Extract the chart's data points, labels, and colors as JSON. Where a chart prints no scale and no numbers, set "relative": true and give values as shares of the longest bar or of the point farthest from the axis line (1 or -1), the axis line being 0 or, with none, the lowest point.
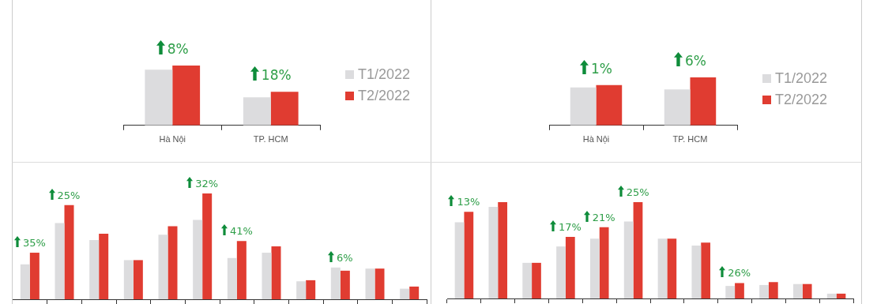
{
  "chart_data": [
    {
      "type": "bar",
      "relative": true,
      "legend": "right",
      "grid": false,
      "categories": [
        "Hà Nội",
        "TP. HCM"
      ],
      "series": [
        {
          "name": "T1/2022",
          "color": "#dcdcde",
          "values": [
            0.93,
            0.47
          ]
        },
        {
          "name": "T2/2022",
          "color": "#e03c31",
          "values": [
            1,
            0.56
          ]
        }
      ],
      "annotations": [
        {
          "text": "8%",
          "x": "Hà Nội",
          "y": 1
        },
        {
          "text": "18%",
          "x": "TP. HCM",
          "y": 0.56
        }
      ]
    },
    {
      "type": "bar",
      "relative": true,
      "legend": "right",
      "grid": false,
      "categories": [
        "Hà Nội",
        "TP. HCM"
      ],
      "series": [
        {
          "name": "T1/2022",
          "color": "#dcdcde",
          "values": [
            0.79,
            0.75
          ]
        },
        {
          "name": "T2/2022",
          "color": "#e03c31",
          "values": [
            0.84,
            1
          ]
        }
      ],
      "annotations": [
        {
          "text": "1%",
          "x": "Hà Nội",
          "y": 0.84
        },
        {
          "text": "6%",
          "x": "TP. HCM",
          "y": 1
        }
      ]
    },
    {
      "type": "bar",
      "relative": true,
      "grid": false,
      "tick_labels": false,
      "categories": [
        null,
        null,
        null,
        null,
        null,
        null,
        null,
        null,
        null,
        null,
        null,
        null
      ],
      "series": [
        {
          "color": "#dcdcde",
          "values": [
            0.33,
            0.72,
            0.56,
            0.37,
            0.61,
            0.75,
            0.39,
            0.44,
            0.17,
            0.3,
            0.29,
            0.1
          ]
        },
        {
          "color": "#e03c31",
          "values": [
            0.44,
            0.89,
            0.62,
            0.37,
            0.69,
            1,
            0.55,
            0.5,
            0.18,
            0.27,
            0.29,
            0.12
          ]
        }
      ],
      "annotations": [
        {
          "text": "35%",
          "y": 0.44
        },
        {
          "text": "25%",
          "y": 0.89
        },
        {
          "text": "32%",
          "y": 1
        },
        {
          "text": "41%",
          "y": 0.55
        },
        {
          "text": "6%",
          "y": 0.3
        }
      ]
    },
    {
      "type": "bar",
      "relative": true,
      "grid": false,
      "tick_labels": false,
      "categories": [
        null,
        null,
        null,
        null,
        null,
        null,
        null,
        null,
        null,
        null,
        null,
        null
      ],
      "series": [
        {
          "color": "#dcdcde",
          "values": [
            0.79,
            0.95,
            0.37,
            0.54,
            0.62,
            0.8,
            0.62,
            0.55,
            0.13,
            0.14,
            0.15,
            0.05
          ]
        },
        {
          "color": "#e03c31",
          "values": [
            0.9,
            1,
            0.37,
            0.64,
            0.74,
            1,
            0.62,
            0.58,
            0.16,
            0.17,
            0.15,
            0.05
          ]
        }
      ],
      "annotations": [
        {
          "text": "13%",
          "y": 0.9
        },
        {
          "text": "17%",
          "y": 0.64
        },
        {
          "text": "21%",
          "y": 0.74
        },
        {
          "text": "25%",
          "y": 1
        },
        {
          "text": "26%",
          "y": 0.16
        }
      ]
    }
  ]
}
